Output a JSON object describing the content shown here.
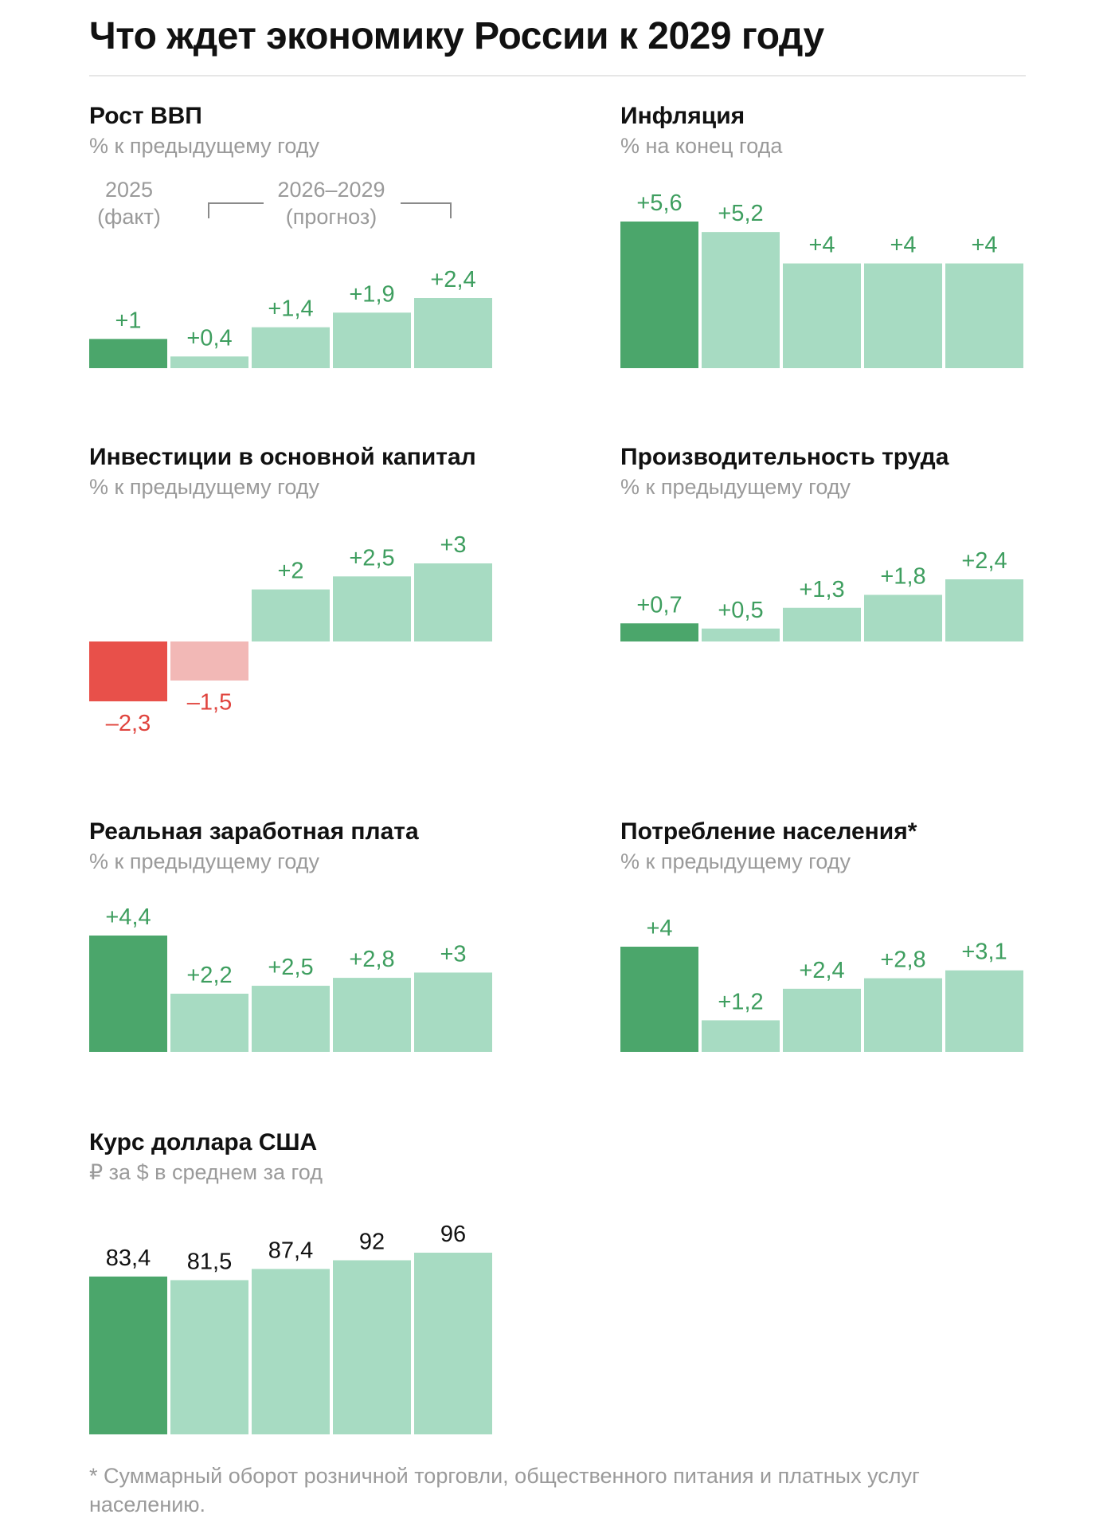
{
  "title": "Что ждет экономику России к 2029 году",
  "legend": {
    "fact_year": "2025",
    "fact_label": "(факт)",
    "forecast_years": "2026–2029",
    "forecast_label": "(прогноз)"
  },
  "colors": {
    "fact_positive": "#4ba66b",
    "forecast_positive": "#a7dbc2",
    "fact_negative": "#e8504a",
    "forecast_negative": "#f2b8b6",
    "label_positive": "#3e9e5f",
    "label_negative": "#e0443e",
    "label_neutral": "#111111"
  },
  "footnote": "* Суммарный оборот розничной торговли, общественного питания и платных услуг населению.",
  "chart_data": [
    {
      "id": "gdp",
      "type": "bar",
      "title": "Рост ВВП",
      "subtitle": "% к предыдущему году",
      "categories": [
        "2025",
        "2026",
        "2027",
        "2028",
        "2029"
      ],
      "values": [
        1,
        0.4,
        1.4,
        1.9,
        2.4
      ],
      "labels": [
        "+1",
        "+0,4",
        "+1,4",
        "+1,9",
        "+2,4"
      ],
      "fact_count": 1
    },
    {
      "id": "inflation",
      "type": "bar",
      "title": "Инфляция",
      "subtitle": "% на конец года",
      "categories": [
        "2025",
        "2026",
        "2027",
        "2028",
        "2029"
      ],
      "values": [
        5.6,
        5.2,
        4,
        4,
        4
      ],
      "labels": [
        "+5,6",
        "+5,2",
        "+4",
        "+4",
        "+4"
      ],
      "fact_count": 1
    },
    {
      "id": "investment",
      "type": "bar",
      "title": "Инвестиции в основной капитал",
      "subtitle": "% к предыдущему году",
      "categories": [
        "2025",
        "2026",
        "2027",
        "2028",
        "2029"
      ],
      "values": [
        -2.3,
        -1.5,
        2,
        2.5,
        3
      ],
      "labels": [
        "–2,3",
        "–1,5",
        "+2",
        "+2,5",
        "+3"
      ],
      "fact_count": 1
    },
    {
      "id": "productivity",
      "type": "bar",
      "title": "Производительность труда",
      "subtitle": "% к предыдущему году",
      "categories": [
        "2025",
        "2026",
        "2027",
        "2028",
        "2029"
      ],
      "values": [
        0.7,
        0.5,
        1.3,
        1.8,
        2.4
      ],
      "labels": [
        "+0,7",
        "+0,5",
        "+1,3",
        "+1,8",
        "+2,4"
      ],
      "fact_count": 1
    },
    {
      "id": "wages",
      "type": "bar",
      "title": "Реальная заработная плата",
      "subtitle": "% к предыдущему году",
      "categories": [
        "2025",
        "2026",
        "2027",
        "2028",
        "2029"
      ],
      "values": [
        4.4,
        2.2,
        2.5,
        2.8,
        3
      ],
      "labels": [
        "+4,4",
        "+2,2",
        "+2,5",
        "+2,8",
        "+3"
      ],
      "fact_count": 1
    },
    {
      "id": "consumption",
      "type": "bar",
      "title": "Потребление населения*",
      "subtitle": "% к предыдущему году",
      "categories": [
        "2025",
        "2026",
        "2027",
        "2028",
        "2029"
      ],
      "values": [
        4,
        1.2,
        2.4,
        2.8,
        3.1
      ],
      "labels": [
        "+4",
        "+1,2",
        "+2,4",
        "+2,8",
        "+3,1"
      ],
      "fact_count": 1
    },
    {
      "id": "usd",
      "type": "bar",
      "title": "Курс доллара США",
      "subtitle": "₽ за $ в среднем за год",
      "categories": [
        "2025",
        "2026",
        "2027",
        "2028",
        "2029"
      ],
      "values": [
        83.4,
        81.5,
        87.4,
        92,
        96
      ],
      "labels": [
        "83,4",
        "81,5",
        "87,4",
        "92",
        "96"
      ],
      "fact_count": 1,
      "neutral_labels": true
    }
  ]
}
